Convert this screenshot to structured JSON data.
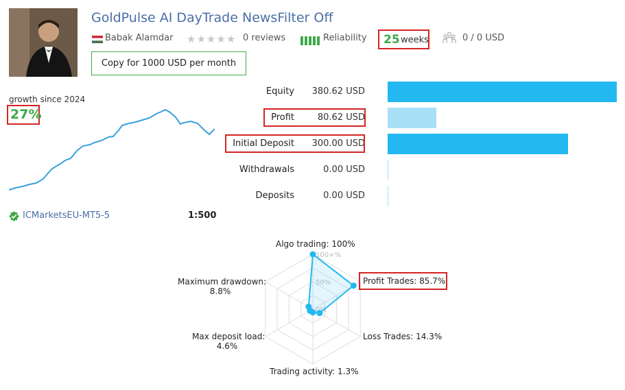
{
  "signal": {
    "title": "GoldPulse AI DayTrade NewsFilter Off",
    "author": "Babak Alamdar",
    "reviews": "0 reviews",
    "reliability_label": "Reliability",
    "weeks_value": "25",
    "weeks_label": "weeks",
    "subscribers": "0 / 0 USD",
    "copy_button": "Copy for 1000 USD per month"
  },
  "growth": {
    "label": "growth since 2024",
    "percent": "27%"
  },
  "stats": [
    {
      "label": "Equity",
      "value": "380.62 USD",
      "amount": 380.62
    },
    {
      "label": "Profit",
      "value": "80.62 USD",
      "amount": 80.62
    },
    {
      "label": "Initial Deposit",
      "value": "300.00 USD",
      "amount": 300.0
    },
    {
      "label": "Withdrawals",
      "value": "0.00 USD",
      "amount": 0
    },
    {
      "label": "Deposits",
      "value": "0.00 USD",
      "amount": 0
    }
  ],
  "account": {
    "broker": "ICMarketsEU-MT5-5",
    "leverage": "1:500"
  },
  "radar": {
    "ticks": [
      "100+%",
      "50%",
      "0%"
    ],
    "axes": [
      {
        "label": "Algo trading: 100%",
        "value": 100
      },
      {
        "label": "Profit Trades: 85.7%",
        "value": 85.7
      },
      {
        "label": "Loss Trades: 14.3%",
        "value": 14.3
      },
      {
        "label": "Trading activity: 1.3%",
        "value": 1.3
      },
      {
        "label_line1": "Max deposit load:",
        "label_line2": "4.6%",
        "value": 4.6
      },
      {
        "label_line1": "Maximum drawdown:",
        "label_line2": "8.8%",
        "value": 8.8
      }
    ]
  },
  "colors": {
    "accent_blue": "#23b8f0",
    "light_blue": "#a8e0f7",
    "green": "#3fa84a",
    "highlight_red": "#d42424",
    "title_blue": "#4a6fa5"
  },
  "icons": [
    "hungary-flag-icon",
    "star-icon",
    "reliability-bars-icon",
    "subscribers-icon",
    "verified-check-icon"
  ]
}
